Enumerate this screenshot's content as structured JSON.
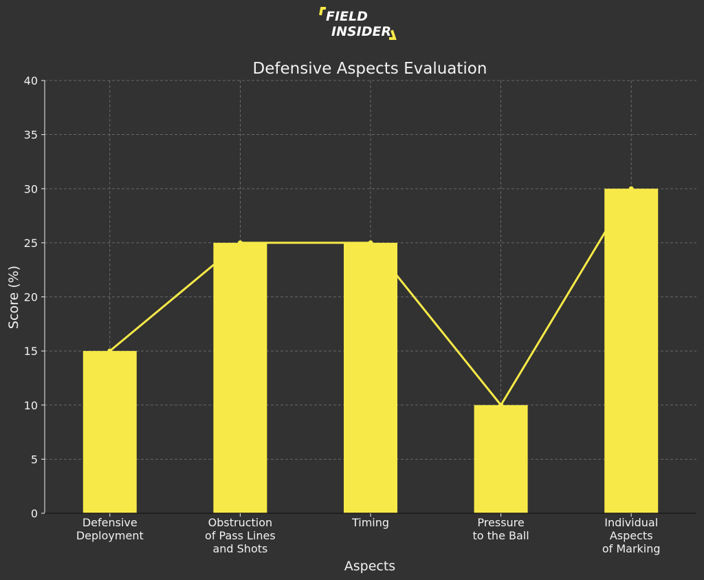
{
  "logo": {
    "line1": "FIELD",
    "line2": "INSIDER"
  },
  "colors": {
    "background": "#323232",
    "accent": "#f7ea48",
    "grid": "#7a7a7a",
    "text": "#f2f2f2"
  },
  "chart_data": {
    "type": "bar",
    "title": "Defensive Aspects Evaluation",
    "xlabel": "Aspects",
    "ylabel": "Score (%)",
    "ylim": [
      0,
      40
    ],
    "yticks": [
      0,
      5,
      10,
      15,
      20,
      25,
      30,
      35,
      40
    ],
    "grid": true,
    "overlay": "line-through-bar-tops",
    "categories": [
      [
        "Defensive",
        "Deployment"
      ],
      [
        "Obstruction",
        "of Pass Lines",
        "and Shots"
      ],
      [
        "Timing"
      ],
      [
        "Pressure",
        "to the Ball"
      ],
      [
        "Individual",
        "Aspects",
        "of Marking"
      ]
    ],
    "values": [
      15,
      25,
      25,
      10,
      30
    ]
  }
}
